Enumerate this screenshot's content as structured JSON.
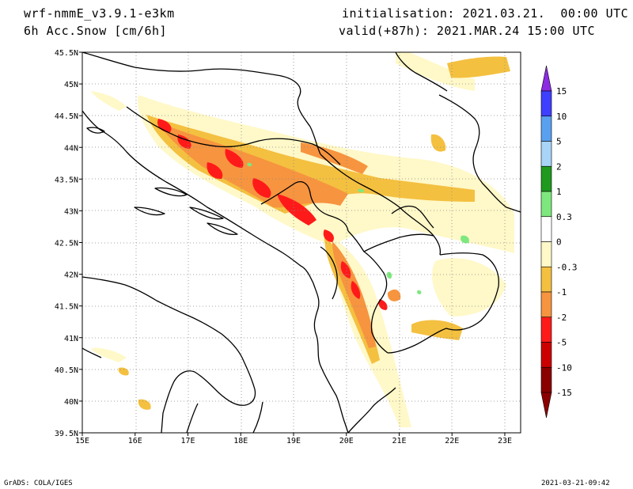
{
  "header": {
    "model": "wrf-nmmE_v3.9.1-e3km",
    "variable": "6h Acc.Snow [cm/6h]",
    "init": "initialisation: 2021.03.21.  00:00 UTC",
    "valid": "valid(+87h): 2021.MAR.24 15:00 UTC"
  },
  "footer": {
    "credit": "GrADS: COLA/IGES",
    "timestamp": "2021-03-21-09:42"
  },
  "map": {
    "lon_range": [
      15,
      23.3
    ],
    "lat_range": [
      39.5,
      45.5
    ],
    "x_ticks": [
      "15E",
      "16E",
      "17E",
      "18E",
      "19E",
      "20E",
      "21E",
      "22E",
      "23E"
    ],
    "y_ticks": [
      "39.5N",
      "40N",
      "40.5N",
      "41N",
      "41.5N",
      "42N",
      "42.5N",
      "43N",
      "43.5N",
      "44N",
      "44.5N",
      "45N",
      "45.5N"
    ],
    "grid": "dotted"
  },
  "colorbar": {
    "labels": [
      "15",
      "10",
      "5",
      "2",
      "1",
      "0.3",
      "0",
      "-0.3",
      "-1",
      "-2",
      "-5",
      "-10",
      "-15"
    ],
    "colors": [
      "#8b2be2",
      "#3f3fff",
      "#5aa0f0",
      "#a7d4f7",
      "#1f9a1f",
      "#7ee87e",
      "#ffffff",
      "#fff8c8",
      "#f4c040",
      "#f7943f",
      "#ff1a1a",
      "#cc0000",
      "#8b0000"
    ]
  }
}
